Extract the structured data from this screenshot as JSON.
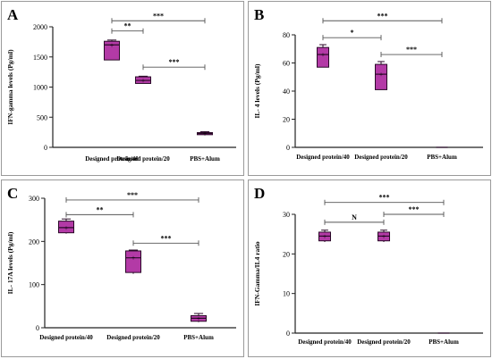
{
  "colors": {
    "box_fill": "#b33aa6",
    "box_stroke": "#2a0a28",
    "axis": "#222222",
    "bracket": "#555555",
    "panel_border": "#9a9a9a"
  },
  "chart_data": [
    {
      "panel": "A",
      "type": "box",
      "ylabel": "IFN-gamma levels (Pg/ml)",
      "categories": [
        "Designed protein/40",
        "Designed protein/20",
        "PBS+Alum"
      ],
      "ylim": [
        0,
        2000
      ],
      "yticks": [
        0,
        500,
        1000,
        1500,
        2000
      ],
      "boxes": [
        {
          "min": 1450,
          "q1": 1450,
          "median": 1700,
          "q3": 1760,
          "max": 1780
        },
        {
          "min": 1060,
          "q1": 1060,
          "median": 1110,
          "q3": 1170,
          "max": 1180
        },
        {
          "min": 200,
          "q1": 210,
          "median": 230,
          "q3": 245,
          "max": 260
        }
      ],
      "comparisons": [
        {
          "from": 0,
          "to": 2,
          "label": "***",
          "y": 2100
        },
        {
          "from": 0,
          "to": 1,
          "label": "**",
          "y": 1930
        },
        {
          "from": 1,
          "to": 2,
          "label": "***",
          "y": 1330
        }
      ]
    },
    {
      "panel": "B",
      "type": "box",
      "ylabel": "IL- 4 levels (Pg/ml)",
      "categories": [
        "Designed protein/40",
        "Designed protein/20",
        "PBS+Alum"
      ],
      "ylim": [
        0,
        80
      ],
      "yticks": [
        0,
        20,
        40,
        60,
        80
      ],
      "boxes": [
        {
          "min": 57,
          "q1": 57,
          "median": 66,
          "q3": 71,
          "max": 73
        },
        {
          "min": 41,
          "q1": 41,
          "median": 52,
          "q3": 59,
          "max": 61
        },
        {
          "min": 0,
          "q1": 0,
          "median": 0,
          "q3": 0,
          "max": 0
        }
      ],
      "comparisons": [
        {
          "from": 0,
          "to": 2,
          "label": "***",
          "y": 90
        },
        {
          "from": 0,
          "to": 1,
          "label": "*",
          "y": 78
        },
        {
          "from": 1,
          "to": 2,
          "label": "***",
          "y": 66
        }
      ]
    },
    {
      "panel": "C",
      "type": "box",
      "ylabel": "IL- 17A levels (Pg/ml)",
      "categories": [
        "Designed protein/40",
        "Designed protein/20",
        "PBS+Alum"
      ],
      "ylim": [
        0,
        300
      ],
      "yticks": [
        0,
        100,
        200,
        300
      ],
      "boxes": [
        {
          "min": 218,
          "q1": 220,
          "median": 232,
          "q3": 247,
          "max": 252
        },
        {
          "min": 125,
          "q1": 128,
          "median": 162,
          "q3": 178,
          "max": 180
        },
        {
          "min": 13,
          "q1": 15,
          "median": 22,
          "q3": 28,
          "max": 33
        }
      ],
      "comparisons": [
        {
          "from": 0,
          "to": 2,
          "label": "***",
          "y": 296
        },
        {
          "from": 0,
          "to": 1,
          "label": "**",
          "y": 262
        },
        {
          "from": 1,
          "to": 2,
          "label": "***",
          "y": 196
        }
      ]
    },
    {
      "panel": "D",
      "type": "box",
      "ylabel": "IFN-Gamma/IL4 ratio",
      "categories": [
        "Designed protein/40",
        "Designed protein/20",
        "PBS+Alum"
      ],
      "ylim": [
        0,
        30
      ],
      "yticks": [
        0,
        10,
        20,
        30
      ],
      "boxes": [
        {
          "min": 23,
          "q1": 23.3,
          "median": 24.5,
          "q3": 25.5,
          "max": 26
        },
        {
          "min": 23,
          "q1": 23.3,
          "median": 24.5,
          "q3": 25.5,
          "max": 26
        },
        {
          "min": 0,
          "q1": 0,
          "median": 0,
          "q3": 0,
          "max": 0
        }
      ],
      "comparisons": [
        {
          "from": 0,
          "to": 2,
          "label": "***",
          "y": 33
        },
        {
          "from": 0,
          "to": 1,
          "label": "N",
          "y": 28
        },
        {
          "from": 1,
          "to": 2,
          "label": "***",
          "y": 30
        }
      ]
    }
  ]
}
